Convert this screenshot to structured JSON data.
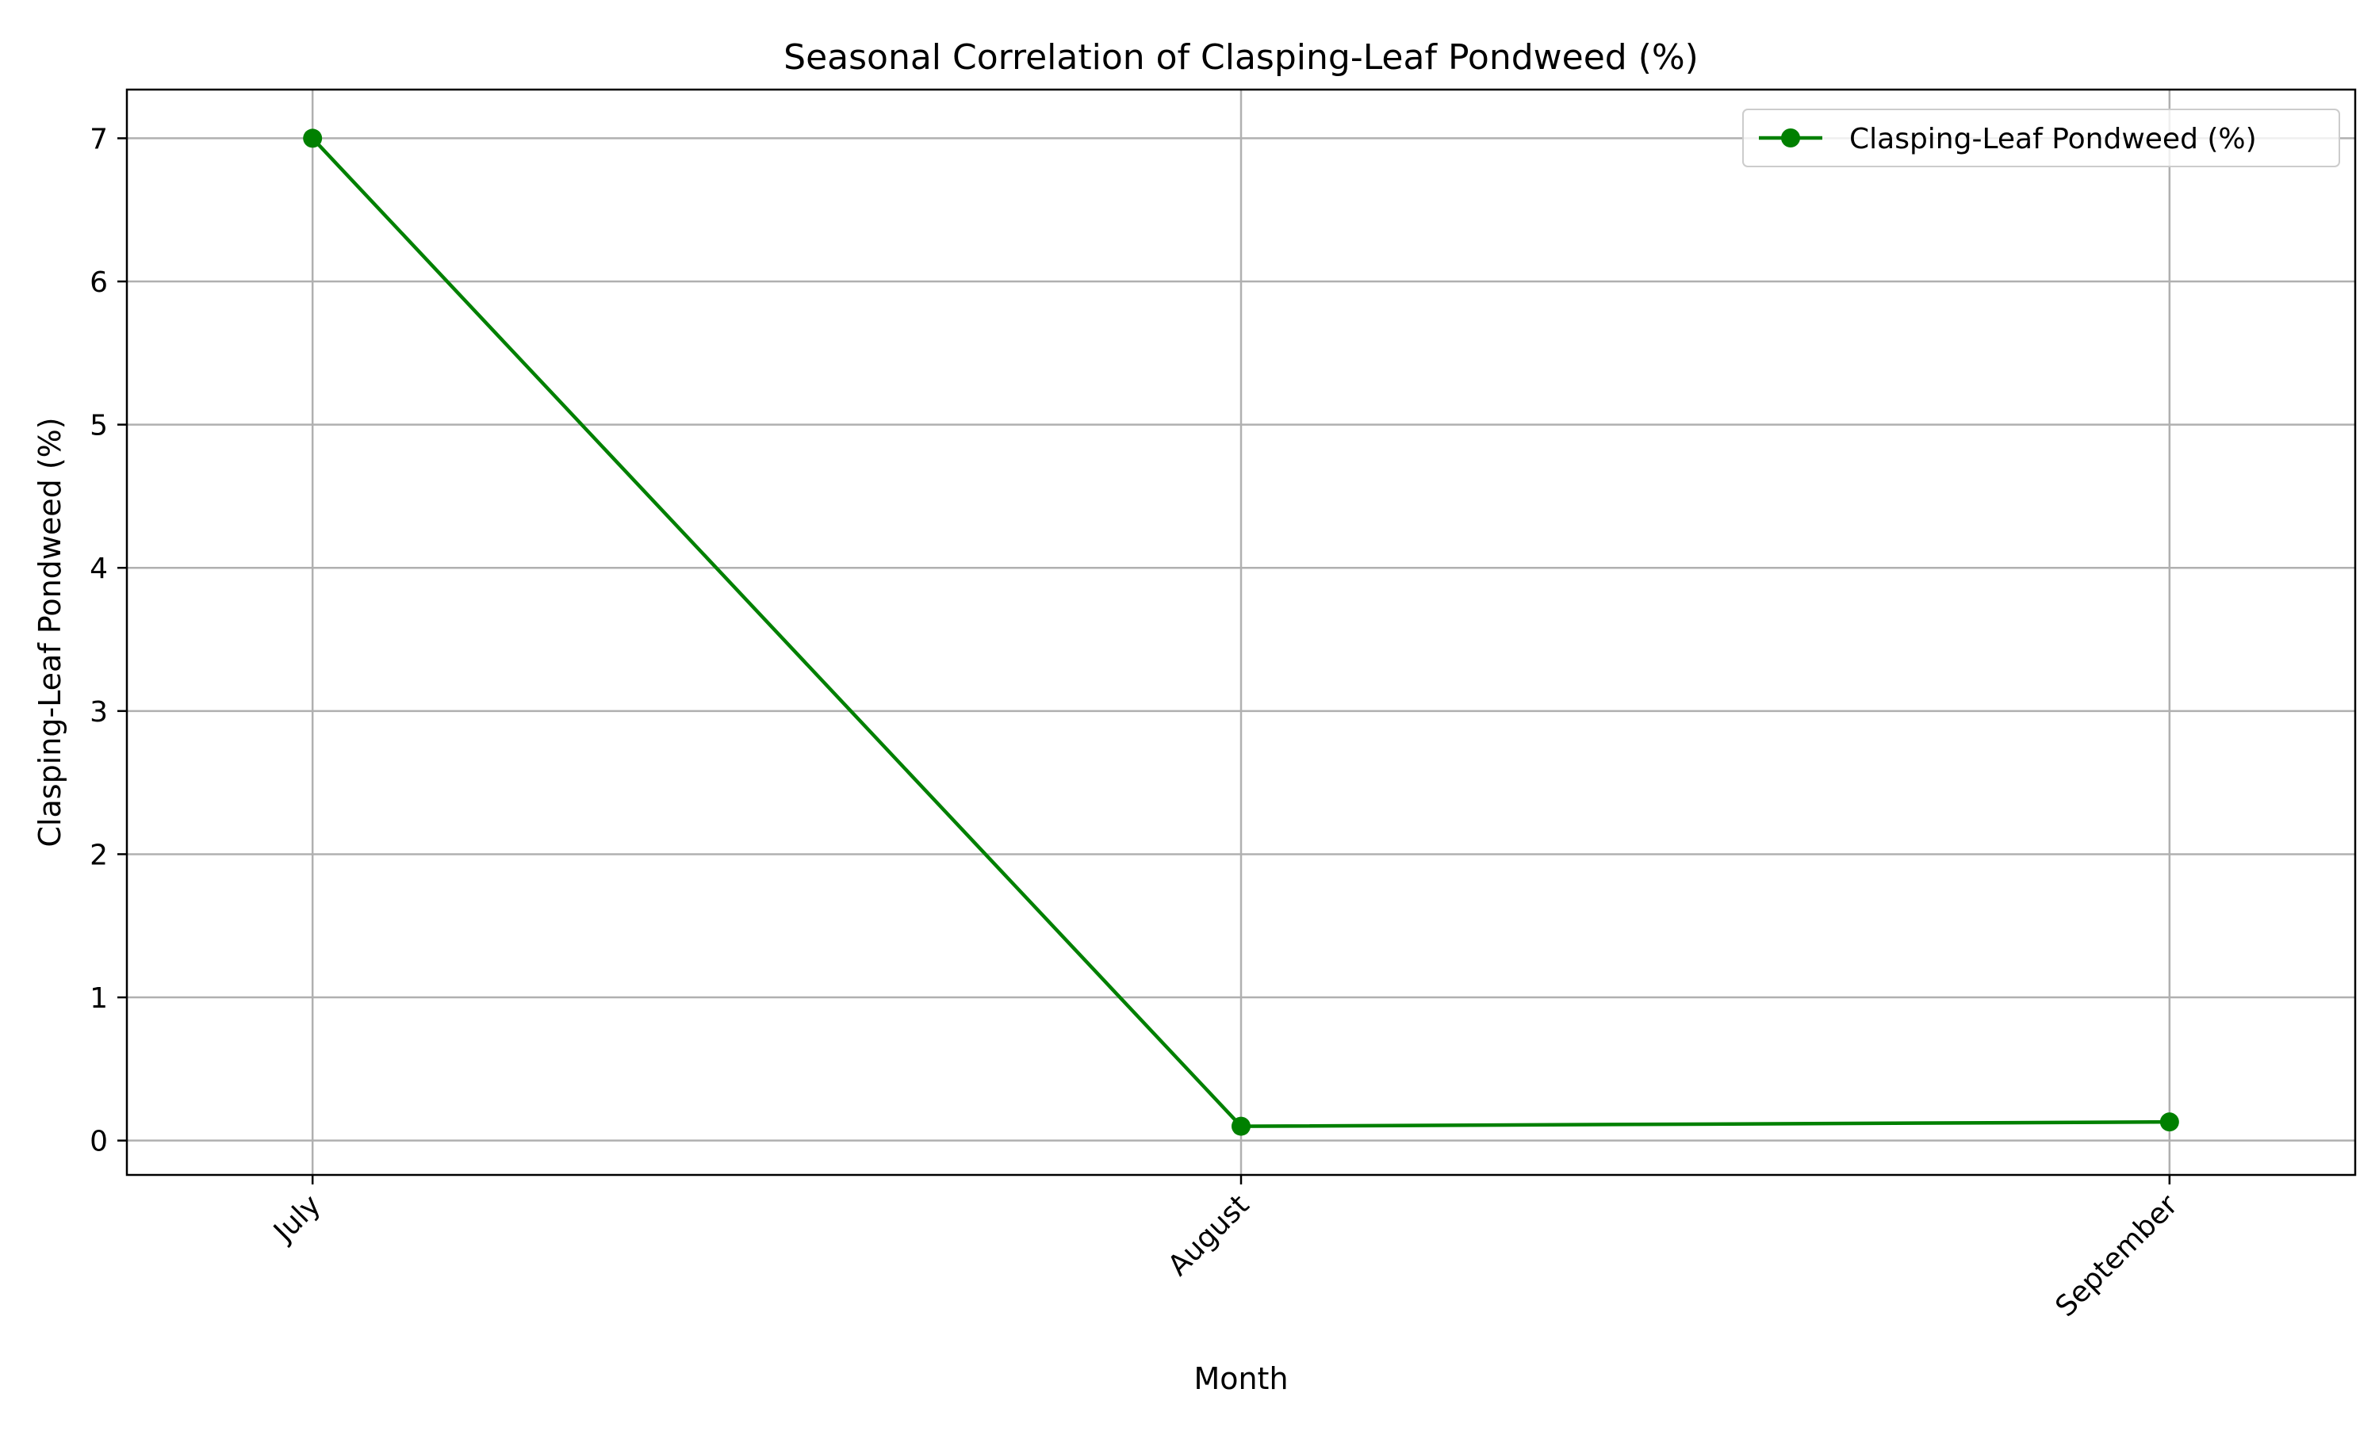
{
  "chart_data": {
    "type": "line",
    "title": "Seasonal Correlation of Clasping-Leaf Pondweed (%)",
    "xlabel": "Month",
    "ylabel": "Clasping-Leaf Pondweed (%)",
    "categories": [
      "July",
      "August",
      "September"
    ],
    "series": [
      {
        "name": "Clasping-Leaf Pondweed (%)",
        "values": [
          7.0,
          0.1,
          0.13
        ],
        "color": "#008000",
        "marker": "circle"
      }
    ],
    "ylim": [
      -0.24,
      7.34
    ],
    "yticks": [
      0,
      1,
      2,
      3,
      4,
      5,
      6,
      7
    ],
    "xtick_rotation": 45,
    "grid": true,
    "legend": "top-right",
    "grid_color": "#b0b0b0",
    "axis_color": "#000000"
  }
}
